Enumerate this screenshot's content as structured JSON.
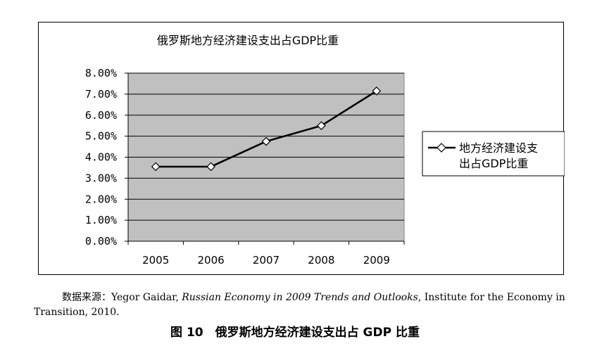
{
  "chart_data": {
    "type": "line",
    "title": "俄罗斯地方经济建设支出占GDP比重",
    "categories": [
      "2005",
      "2006",
      "2007",
      "2008",
      "2009"
    ],
    "series": [
      {
        "name": "地方经济建设支出占GDP比重",
        "values": [
          3.55,
          3.55,
          4.75,
          5.5,
          7.15
        ]
      }
    ],
    "yticks": [
      "0.00%",
      "1.00%",
      "2.00%",
      "3.00%",
      "4.00%",
      "5.00%",
      "6.00%",
      "7.00%",
      "8.00%"
    ],
    "ylim": [
      0,
      8
    ],
    "grid": true,
    "legend_position": "right",
    "legend_lines": [
      "地方经济建设支",
      "出占GDP比重"
    ],
    "colors": {
      "plot_background": "#c0c0c0",
      "line": "#000000",
      "marker_fill": "#ffffff"
    }
  },
  "source": {
    "label": "数据来源：",
    "author": "Yegor Gaidar,",
    "book": "Russian Economy in 2009 Trends and Outlooks",
    "rest": ", Institute for the Economy in Transition, 2010."
  },
  "caption": "图 10　俄罗斯地方经济建设支出占 GDP 比重"
}
